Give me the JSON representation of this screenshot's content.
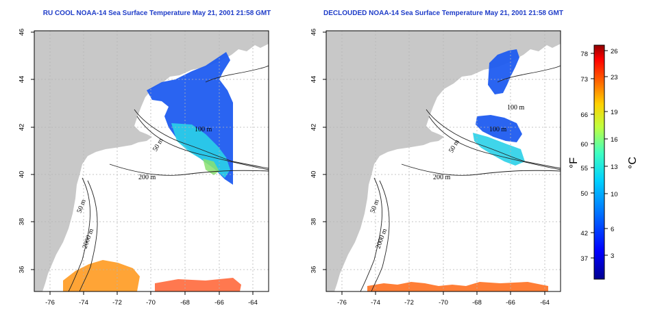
{
  "maps": [
    {
      "id": "left",
      "title": "RU COOL NOAA-14 Sea Surface Temperature May 21, 2001 21:58 GMT",
      "x_ticks": [
        "-76",
        "-74",
        "-72",
        "-70",
        "-68",
        "-66",
        "-64"
      ],
      "y_ticks": [
        "46",
        "44",
        "42",
        "40",
        "38",
        "36"
      ],
      "contour_labels": [
        "100 m",
        "50 m",
        "200 m",
        "50 m",
        "2000 m"
      ]
    },
    {
      "id": "right",
      "title": "DECLOUDED NOAA-14 Sea Surface Temperature May 21, 2001 21:58 GMT",
      "x_ticks": [
        "-76",
        "-74",
        "-72",
        "-70",
        "-68",
        "-66",
        "-64"
      ],
      "y_ticks": [
        "46",
        "44",
        "42",
        "40",
        "38",
        "36"
      ],
      "contour_labels": [
        "100 m",
        "100 m",
        "50 m",
        "200 m",
        "50 m",
        "2000 m"
      ]
    }
  ],
  "colorbar": {
    "fahrenheit_label": "°F",
    "celsius_label": "°C",
    "fahrenheit_ticks": [
      "78",
      "73",
      "66",
      "60",
      "55",
      "50",
      "42",
      "37"
    ],
    "celsius_ticks": [
      "26",
      "23",
      "19",
      "16",
      "13",
      "10",
      "6",
      "3"
    ],
    "colors": [
      "#000090",
      "#0000ff",
      "#0070ff",
      "#00d0ff",
      "#40ffc0",
      "#c0ff40",
      "#ffd000",
      "#ff6000",
      "#ff0000",
      "#900000"
    ]
  },
  "colors": {
    "land": "#c8c8c8",
    "title": "#1e3cc8",
    "grid": "#b4b4b4"
  }
}
